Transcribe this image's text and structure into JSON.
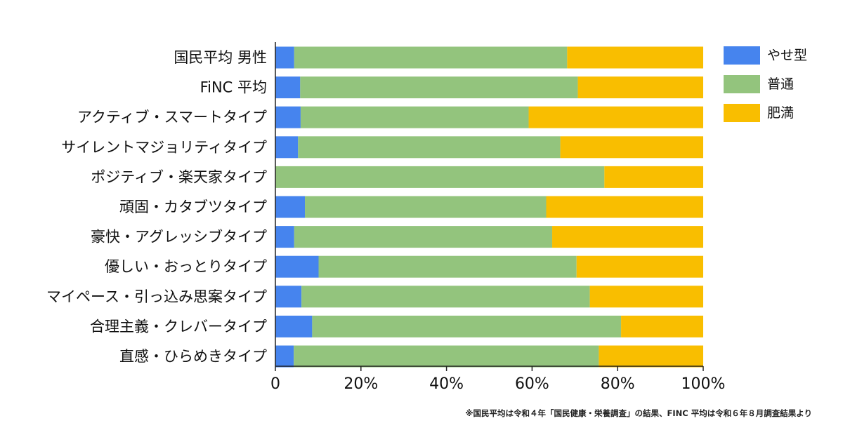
{
  "chart_data": {
    "type": "bar",
    "orientation": "horizontal",
    "stacked": true,
    "categories": [
      "国民平均 男性",
      "FiNC 平均",
      "アクティブ・スマートタイプ",
      "サイレントマジョリティタイプ",
      "ポジティブ・楽天家タイプ",
      "頑固・カタブツタイプ",
      "豪快・アグレッシブタイプ",
      "優しい・おっとりタイプ",
      "マイペース・引っ込み思案タイプ",
      "合理主義・クレバータイプ",
      "直感・ひらめきタイプ"
    ],
    "series": [
      {
        "name": "やせ型",
        "color": "#4684ee",
        "values": [
          4.4,
          5.8,
          5.9,
          5.3,
          0,
          6.9,
          4.4,
          10.1,
          6.1,
          8.6,
          4.3
        ]
      },
      {
        "name": "普通",
        "color": "#93c47d",
        "values": [
          63.8,
          64.9,
          53.3,
          61.3,
          76.9,
          56.4,
          60.3,
          60.3,
          67.4,
          72.2,
          71.3
        ]
      },
      {
        "name": "肥満",
        "color": "#f9be00",
        "values": [
          31.8,
          29.3,
          40.8,
          33.4,
          23.1,
          36.7,
          35.3,
          29.6,
          26.5,
          19.2,
          24.4
        ]
      }
    ],
    "xlim": [
      0,
      100
    ],
    "x_ticks": [
      "0",
      "20%",
      "40%",
      "60%",
      "80%",
      "100%"
    ],
    "legend_position": "top-right",
    "grid": false
  },
  "footnote": "※国民平均は令和４年「国民健康・栄養調査」の結果、FINC 平均は令和６年８月調査結果より"
}
